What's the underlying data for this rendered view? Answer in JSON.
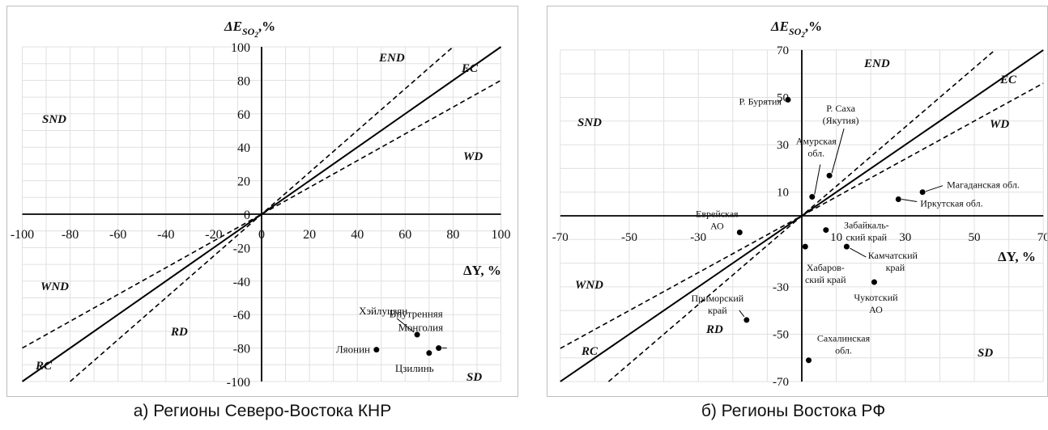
{
  "charts": {
    "a": {
      "caption": "а) Регионы Северо-Востока КНР",
      "ytitle_main": "ΔE",
      "ytitle_sub": "SO",
      "ytitle_subsub": "2",
      "ytitle_tail": ",%",
      "xtitle": "ΔY, %",
      "regions": {
        "END": "END",
        "EC": "EC",
        "SND": "SND",
        "WD": "WD",
        "WND": "WND",
        "RD": "RD",
        "RC": "RC",
        "SD": "SD"
      }
    },
    "b": {
      "caption": "б) Регионы Востока РФ",
      "ytitle_main": "ΔE",
      "ytitle_sub": "SO",
      "ytitle_subsub": "2",
      "ytitle_tail": ",%",
      "xtitle": "ΔY, %",
      "regions": {
        "END": "END",
        "EC": "EC",
        "SND": "SND",
        "WD": "WD",
        "WND": "WND",
        "RD": "RD",
        "RC": "RC",
        "SD": "SD"
      }
    }
  },
  "chart_data": [
    {
      "type": "scatter",
      "xlim": [
        -100,
        100
      ],
      "ylim": [
        -100,
        100
      ],
      "xticks": [
        -100,
        -80,
        -60,
        -40,
        -20,
        0,
        20,
        40,
        60,
        80,
        100
      ],
      "yticks": [
        -100,
        -80,
        -60,
        -40,
        -20,
        0,
        20,
        40,
        60,
        80,
        100
      ],
      "grid": true,
      "reference_lines": [
        {
          "style": "solid",
          "slope": 1
        },
        {
          "style": "dashed",
          "slope": 1.25
        },
        {
          "style": "dashed",
          "slope": 0.8
        }
      ],
      "points": [
        {
          "label": "Хэйлуцзян",
          "x": 65,
          "y": -72
        },
        {
          "label": "Внутренняя Монголия",
          "x": 74,
          "y": -80
        },
        {
          "label": "Ляонин",
          "x": 48,
          "y": -81
        },
        {
          "label": "Цзилинь",
          "x": 70,
          "y": -83
        }
      ]
    },
    {
      "type": "scatter",
      "xlim": [
        -70,
        70
      ],
      "ylim": [
        -70,
        70
      ],
      "xticks": [
        -70,
        -50,
        -30,
        10,
        30,
        50,
        70
      ],
      "yticks": [
        -70,
        -50,
        -30,
        10,
        30,
        50,
        70
      ],
      "grid": true,
      "reference_lines": [
        {
          "style": "solid",
          "slope": 1
        },
        {
          "style": "dashed",
          "slope": 1.25
        },
        {
          "style": "dashed",
          "slope": 0.8
        }
      ],
      "points": [
        {
          "label": "Р. Бурятия",
          "x": -4,
          "y": 49
        },
        {
          "label": "Р. Саха (Якутия)",
          "x": 8,
          "y": 17
        },
        {
          "label": "Амурская обл.",
          "x": 3,
          "y": 8
        },
        {
          "label": "Магаданская обл.",
          "x": 35,
          "y": 10
        },
        {
          "label": "Иркутская обл.",
          "x": 28,
          "y": 7
        },
        {
          "label": "Еврейская АО",
          "x": -18,
          "y": -7
        },
        {
          "label": "Забайкаль-ский край",
          "x": 7,
          "y": -6
        },
        {
          "label": "Хабаров-ский край",
          "x": 1,
          "y": -13
        },
        {
          "label": "Камчатский край",
          "x": 13,
          "y": -13
        },
        {
          "label": "Чукотский АО",
          "x": 21,
          "y": -28
        },
        {
          "label": "Приморский край",
          "x": -16,
          "y": -44
        },
        {
          "label": "Сахалинская обл.",
          "x": 2,
          "y": -61
        }
      ]
    }
  ]
}
